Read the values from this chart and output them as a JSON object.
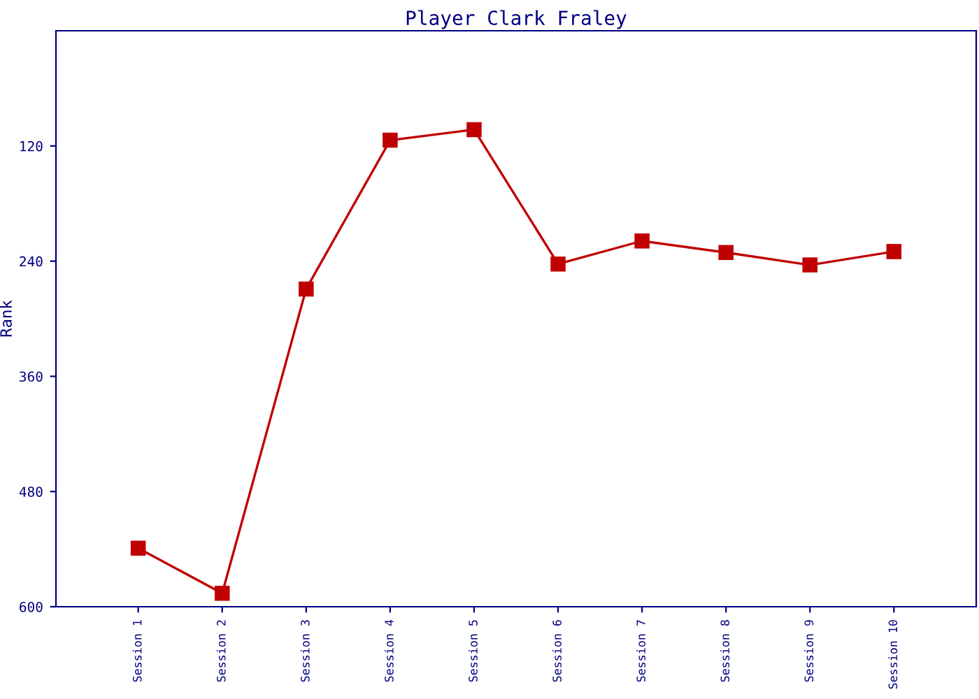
{
  "chart_data": {
    "type": "line",
    "title": "Player Clark Fraley",
    "ylabel": "Rank",
    "categories": [
      "Session 1",
      "Session 2",
      "Session 3",
      "Session 4",
      "Session 5",
      "Session 6",
      "Session 7",
      "Session 8",
      "Session 9",
      "Session 10"
    ],
    "series": [
      {
        "color": "#c00000",
        "values": [
          539,
          586,
          269,
          114,
          103,
          243,
          219,
          231,
          244,
          230
        ]
      }
    ],
    "ylim": [
      600,
      0
    ],
    "yticks": [
      120,
      240,
      360,
      480,
      600
    ],
    "grid": false,
    "legend": false,
    "marker": "square",
    "line_style": "solid"
  }
}
